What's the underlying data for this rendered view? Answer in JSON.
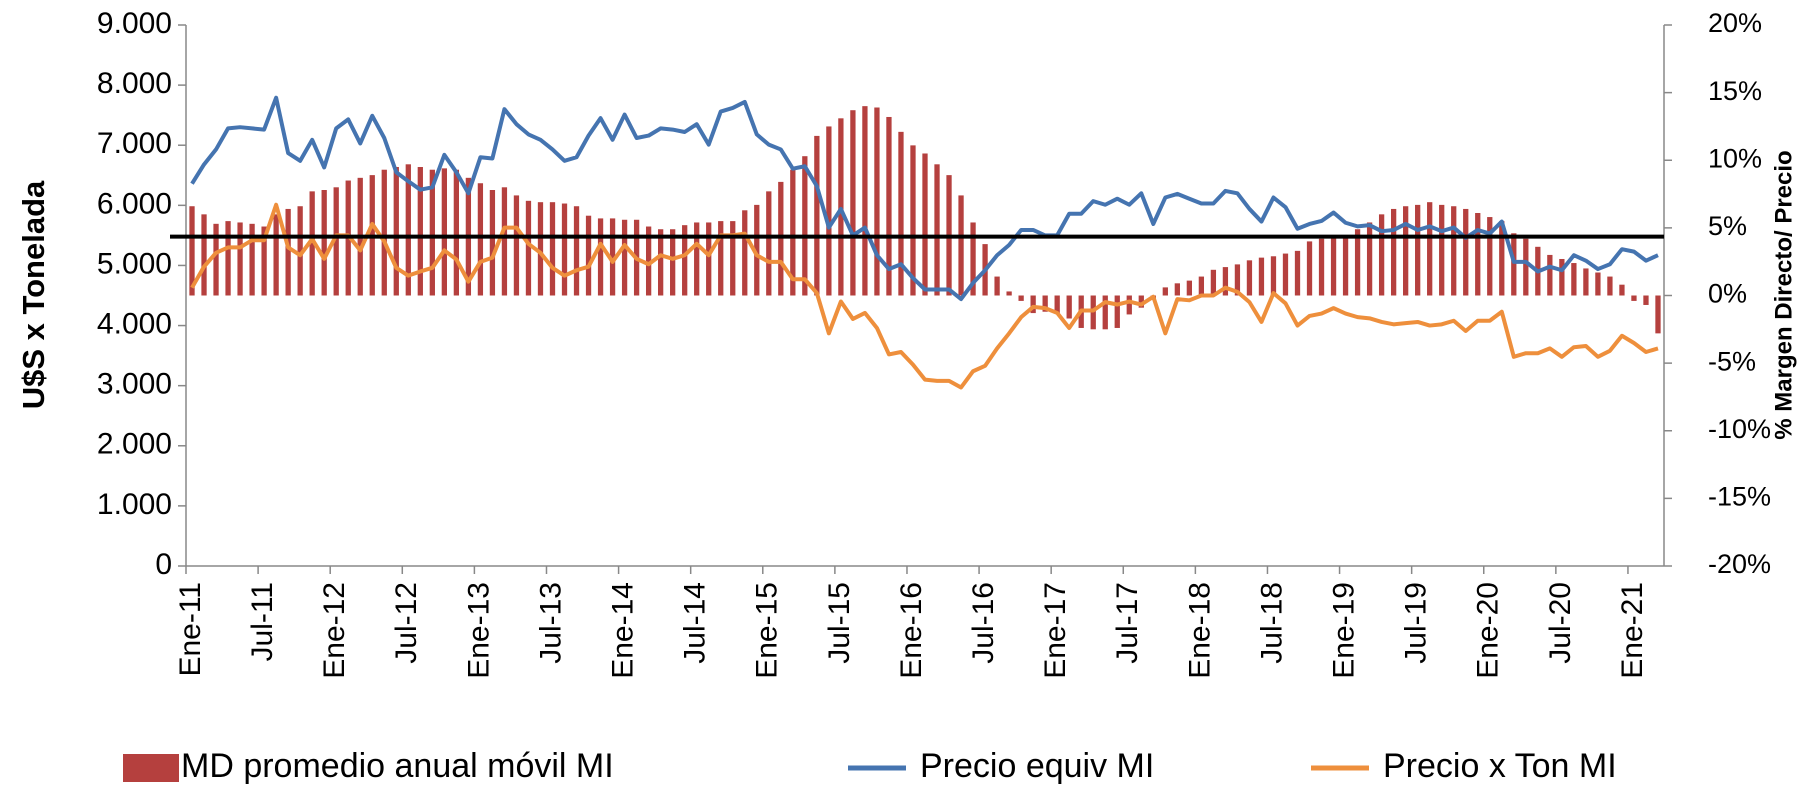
{
  "chart_data": {
    "type": "bar",
    "y_label": "U$S x Tonelada",
    "y2_label": "% Margen Directo/ Precio",
    "categories": [
      "Ene-11",
      null,
      null,
      null,
      null,
      null,
      "Jul-11",
      null,
      null,
      null,
      null,
      null,
      "Ene-12",
      null,
      null,
      null,
      null,
      null,
      "Jul-12",
      null,
      null,
      null,
      null,
      null,
      "Ene-13",
      null,
      null,
      null,
      null,
      null,
      "Jul-13",
      null,
      null,
      null,
      null,
      null,
      "Ene-14",
      null,
      null,
      null,
      null,
      null,
      "Jul-14",
      null,
      null,
      null,
      null,
      null,
      "Ene-15",
      null,
      null,
      null,
      null,
      null,
      "Jul-15",
      null,
      null,
      null,
      null,
      null,
      "Ene-16",
      null,
      null,
      null,
      null,
      null,
      "Jul-16",
      null,
      null,
      null,
      null,
      null,
      "Ene-17",
      null,
      null,
      null,
      null,
      null,
      "Jul-17",
      null,
      null,
      null,
      null,
      null,
      "Ene-18",
      null,
      null,
      null,
      null,
      null,
      "Jul-18",
      null,
      null,
      null,
      null,
      null,
      "Ene-19",
      null,
      null,
      null,
      null,
      null,
      "Jul-19",
      null,
      null,
      null,
      null,
      null,
      "Ene-20",
      null,
      null,
      null,
      null,
      null,
      "Jul-20",
      null,
      null,
      null,
      null,
      null,
      "Ene-21",
      null,
      null
    ],
    "series": [
      {
        "name": "MD promedio anual móvil MI",
        "type": "bar",
        "axis": "y2",
        "color": "#b5403e",
        "values": [
          6.6,
          6.0,
          5.3,
          5.5,
          5.4,
          5.3,
          5.1,
          6.0,
          6.4,
          6.6,
          7.7,
          7.8,
          8.0,
          8.5,
          8.7,
          8.9,
          9.3,
          9.5,
          9.7,
          9.5,
          9.3,
          9.4,
          9.3,
          8.7,
          8.3,
          7.8,
          8.0,
          7.4,
          7.0,
          6.9,
          6.9,
          6.8,
          6.6,
          5.9,
          5.7,
          5.7,
          5.6,
          5.6,
          5.1,
          4.9,
          4.9,
          5.2,
          5.4,
          5.4,
          5.5,
          5.5,
          6.3,
          6.7,
          7.7,
          8.4,
          9.3,
          10.3,
          11.8,
          12.5,
          13.1,
          13.7,
          14.0,
          13.9,
          13.2,
          12.1,
          11.1,
          10.5,
          9.7,
          8.9,
          7.4,
          5.4,
          3.8,
          1.4,
          0.3,
          -0.4,
          -1.3,
          -1.2,
          -1.3,
          -1.7,
          -2.4,
          -2.5,
          -2.5,
          -2.4,
          -1.4,
          -0.9,
          -0.3,
          0.6,
          0.9,
          1.1,
          1.4,
          1.9,
          2.1,
          2.3,
          2.6,
          2.8,
          2.9,
          3.1,
          3.3,
          4.0,
          4.2,
          4.3,
          4.4,
          4.9,
          5.4,
          6.0,
          6.4,
          6.6,
          6.7,
          6.9,
          6.7,
          6.6,
          6.4,
          6.1,
          5.8,
          5.5,
          4.6,
          4.2,
          3.6,
          3.0,
          2.7,
          2.4,
          2.0,
          1.7,
          1.4,
          0.8,
          -0.4,
          -0.7,
          -2.8
        ]
      },
      {
        "name": "Precio equiv MI",
        "type": "line",
        "color": "#4574b0",
        "values": [
          6360,
          6680,
          6930,
          7280,
          7300,
          7280,
          7260,
          7790,
          6870,
          6740,
          7090,
          6630,
          7280,
          7430,
          7030,
          7490,
          7120,
          6550,
          6400,
          6260,
          6300,
          6840,
          6550,
          6200,
          6800,
          6780,
          7600,
          7350,
          7180,
          7090,
          6930,
          6740,
          6800,
          7160,
          7450,
          7090,
          7510,
          7120,
          7160,
          7280,
          7260,
          7220,
          7350,
          7010,
          7560,
          7620,
          7720,
          7180,
          7010,
          6930,
          6610,
          6650,
          6320,
          5630,
          5940,
          5500,
          5630,
          5170,
          4940,
          5020,
          4790,
          4600,
          4600,
          4600,
          4440,
          4710,
          4920,
          5170,
          5340,
          5590,
          5590,
          5500,
          5500,
          5860,
          5860,
          6070,
          6010,
          6110,
          6010,
          6200,
          5690,
          6130,
          6190,
          6110,
          6030,
          6030,
          6240,
          6200,
          5940,
          5730,
          6130,
          5970,
          5610,
          5690,
          5740,
          5880,
          5710,
          5650,
          5670,
          5570,
          5590,
          5690,
          5590,
          5650,
          5570,
          5630,
          5460,
          5590,
          5530,
          5730,
          5060,
          5060,
          4900,
          4980,
          4920,
          5170,
          5080,
          4940,
          5020,
          5270,
          5230,
          5080,
          5170
        ]
      },
      {
        "name": "Precio x Ton MI",
        "type": "line",
        "color": "#ee8f3c",
        "values": [
          4630,
          4980,
          5210,
          5300,
          5300,
          5420,
          5420,
          6010,
          5300,
          5170,
          5440,
          5110,
          5500,
          5500,
          5250,
          5690,
          5400,
          4960,
          4830,
          4900,
          4960,
          5250,
          5100,
          4730,
          5060,
          5130,
          5630,
          5630,
          5360,
          5210,
          4960,
          4830,
          4920,
          4980,
          5360,
          5060,
          5340,
          5110,
          5020,
          5170,
          5110,
          5170,
          5360,
          5170,
          5500,
          5500,
          5530,
          5170,
          5060,
          5060,
          4770,
          4770,
          4540,
          3870,
          4400,
          4110,
          4210,
          3960,
          3520,
          3560,
          3350,
          3100,
          3080,
          3080,
          2970,
          3240,
          3330,
          3620,
          3870,
          4140,
          4310,
          4290,
          4210,
          3960,
          4250,
          4250,
          4390,
          4350,
          4400,
          4350,
          4480,
          3870,
          4440,
          4420,
          4500,
          4500,
          4630,
          4560,
          4390,
          4060,
          4540,
          4370,
          4000,
          4160,
          4200,
          4290,
          4200,
          4140,
          4120,
          4060,
          4020,
          4040,
          4060,
          4000,
          4020,
          4080,
          3910,
          4080,
          4080,
          4230,
          3480,
          3540,
          3540,
          3620,
          3480,
          3640,
          3660,
          3480,
          3580,
          3830,
          3710,
          3560,
          3620
        ]
      }
    ],
    "hline": {
      "value": 5480,
      "color": "#000000"
    },
    "ylim": [
      0,
      9000
    ],
    "yticks": [
      0,
      {
        "value": 1000,
        "label": "1.000"
      },
      {
        "value": 2000,
        "label": "2.000"
      },
      {
        "value": 3000,
        "label": "3.000"
      },
      {
        "value": 4000,
        "label": "4.000"
      },
      {
        "value": 5000,
        "label": "5.000"
      },
      {
        "value": 6000,
        "label": "6.000"
      },
      {
        "value": 7000,
        "label": "7.000"
      },
      {
        "value": 8000,
        "label": "8.000"
      },
      {
        "value": 9000,
        "label": "9.000"
      }
    ],
    "y2lim": [
      -20,
      20
    ],
    "y2ticks": [
      {
        "value": -20,
        "label": "-20%"
      },
      {
        "value": -15,
        "label": "-15%"
      },
      {
        "value": -10,
        "label": "-10%"
      },
      {
        "value": -5,
        "label": "-5%"
      },
      {
        "value": 0,
        "label": "0%"
      },
      {
        "value": 5,
        "label": "5%"
      },
      {
        "value": 10,
        "label": "10%"
      },
      {
        "value": 15,
        "label": "15%"
      },
      {
        "value": 20,
        "label": "20%"
      }
    ],
    "y2_color": "#c00000",
    "legend": "bottom",
    "grid": false
  }
}
